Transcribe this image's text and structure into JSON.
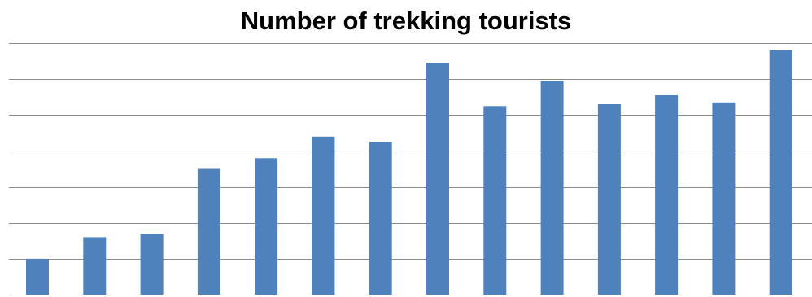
{
  "chart_data": {
    "type": "bar",
    "title": "Number of trekking tourists",
    "xlabel": "",
    "ylabel": "",
    "categories": [
      "",
      "",
      "",
      "",
      "",
      "",
      "",
      "",
      "",
      "",
      "",
      "",
      "",
      ""
    ],
    "values": [
      1.0,
      1.6,
      1.7,
      3.5,
      3.8,
      4.4,
      4.25,
      6.45,
      5.25,
      5.95,
      5.3,
      5.55,
      5.35,
      6.8
    ],
    "ylim": [
      0,
      7
    ],
    "grid": true,
    "legend": "none",
    "bar_color": "#4f81bd"
  }
}
